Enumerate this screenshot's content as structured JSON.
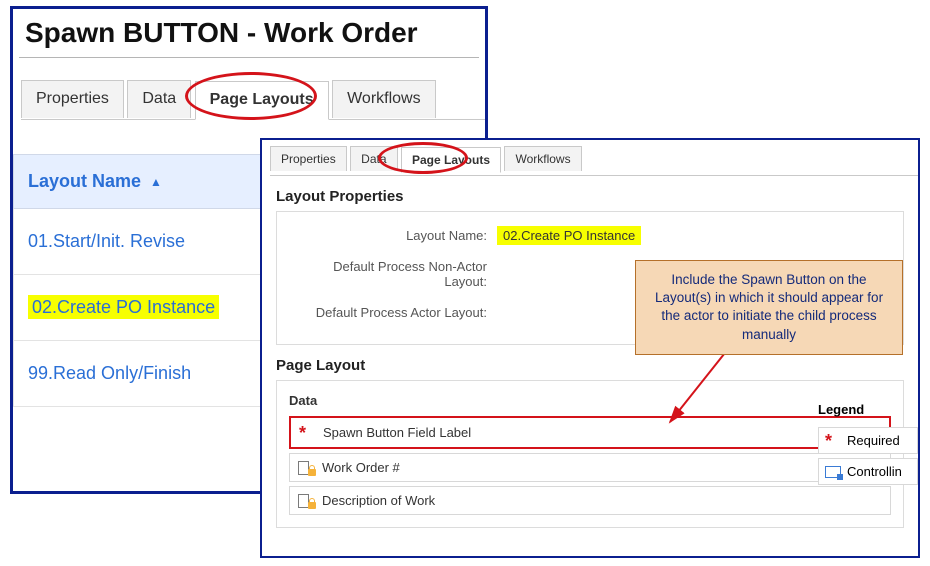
{
  "colors": {
    "panel_border": "#0b1f8f",
    "red_annotation": "#d4131a",
    "highlight": "#f7ff00",
    "link_blue": "#2a6fd6",
    "callout_bg": "#f6d8b6",
    "callout_border": "#b5702a",
    "callout_text": "#142a7a",
    "header_bg": "#e6efff"
  },
  "left_panel": {
    "title": "Spawn BUTTON - Work Order",
    "tabs": {
      "properties": "Properties",
      "data": "Data",
      "page_layouts": "Page Layouts",
      "workflows": "Workflows",
      "active": "page_layouts"
    },
    "list_header": "Layout Name",
    "items": [
      {
        "label": "01.Start/Init. Revise",
        "highlight": false
      },
      {
        "label": "02.Create PO Instance",
        "highlight": true
      },
      {
        "label": "99.Read Only/Finish",
        "highlight": false
      }
    ]
  },
  "right_panel": {
    "tabs": {
      "properties": "Properties",
      "data": "Data",
      "page_layouts": "Page Layouts",
      "workflows": "Workflows",
      "active": "page_layouts"
    },
    "section_properties_title": "Layout Properties",
    "form": {
      "layout_name_label": "Layout Name:",
      "layout_name_value": "02.Create PO Instance",
      "non_actor_label": "Default Process Non-Actor Layout:",
      "actor_label": "Default Process Actor Layout:"
    },
    "section_layout_title": "Page Layout",
    "data_header": "Data",
    "fields": [
      {
        "label": "Spawn Button Field Label",
        "required": true,
        "type": "required"
      },
      {
        "label": "Work Order #",
        "required": false,
        "type": "locked"
      },
      {
        "label": "Description of Work",
        "required": false,
        "type": "locked"
      }
    ],
    "legend": {
      "title": "Legend",
      "required": "Required",
      "controlling": "Controllin"
    }
  },
  "callout_text": "Include the Spawn Button on the Layout(s) in which it should appear for the actor to initiate the child process manually"
}
